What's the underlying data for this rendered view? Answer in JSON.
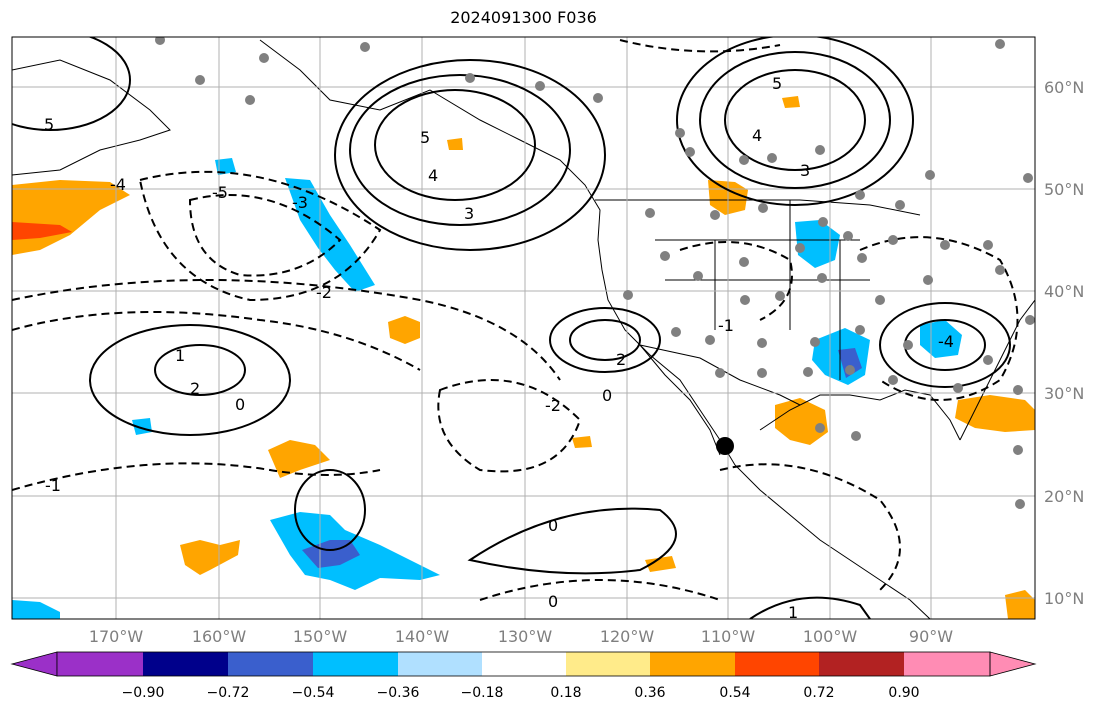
{
  "title": "2024091300 F036",
  "map": {
    "lon_range": [
      -180,
      -80
    ],
    "lat_range": [
      8,
      65
    ],
    "longitude_labels": [
      "170°W",
      "160°W",
      "150°W",
      "140°W",
      "130°W",
      "120°W",
      "110°W",
      "100°W",
      "90°W"
    ],
    "latitude_labels": [
      "60°N",
      "50°N",
      "40°N",
      "30°N",
      "20°N",
      "10°N"
    ],
    "contour_labels_visible": [
      "5",
      "4",
      "3",
      "2",
      "1",
      "0",
      "-1",
      "-2",
      "-3",
      "-4",
      "-5"
    ]
  },
  "colorbar": {
    "colors": [
      "#9b30c8",
      "#00008b",
      "#3a5fcd",
      "#00bfff",
      "#b0e0ff",
      "#ffffff",
      "#ffeb8a",
      "#ffa500",
      "#ff4500",
      "#b22222",
      "#ff8cb4"
    ],
    "tick_labels": [
      "−0.90",
      "−0.72",
      "−0.54",
      "−0.36",
      "−0.18",
      "0.18",
      "0.36",
      "0.54",
      "0.72",
      "0.90"
    ]
  },
  "colors": {
    "negative_shade": "#00bfff",
    "positive_shade": "#ffa500",
    "station_dot": "#808080",
    "marker": "#000000"
  }
}
